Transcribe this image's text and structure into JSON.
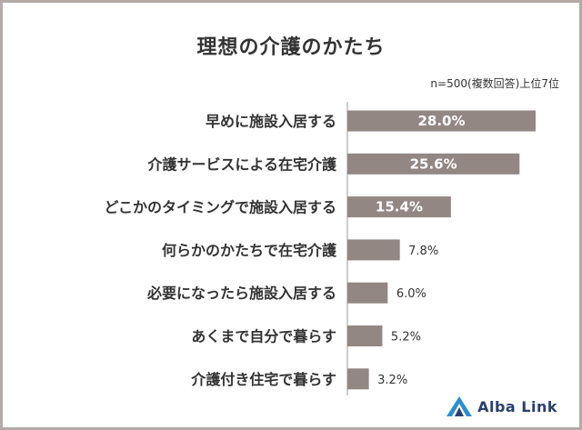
{
  "title": "理想の介護のかたち",
  "note": "n=500(複数回答)上位7位",
  "brand": {
    "name": "Alba Link",
    "color": "#2a3f6f",
    "accent": "#2a8fd0"
  },
  "colors": {
    "bar": "#938784",
    "frame": "#b3aaa6",
    "text": "#333333"
  },
  "chart_data": {
    "type": "bar",
    "orientation": "horizontal",
    "title": "理想の介護のかたち",
    "categories": [
      "早めに施設入居する",
      "介護サービスによる在宅介護",
      "どこかのタイミングで施設入居する",
      "何らかのかたちで在宅介護",
      "必要になったら施設入居する",
      "あくまで自分で暮らす",
      "介護付き住宅で暮らす"
    ],
    "values": [
      28.0,
      25.6,
      15.4,
      7.8,
      6.0,
      5.2,
      3.2
    ],
    "labels": [
      "28.0%",
      "25.6%",
      "15.4%",
      "7.8%",
      "6.0%",
      "5.2%",
      "3.2%"
    ],
    "unit": "%",
    "xlim": [
      0,
      30
    ],
    "grid": false,
    "legend": "none"
  }
}
